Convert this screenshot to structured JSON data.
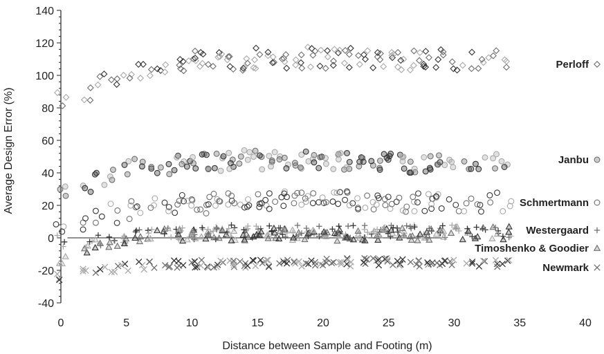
{
  "chart_data": {
    "type": "scatter",
    "xlabel": "Distance between Sample and Footing (m)",
    "ylabel": "Average Design Error (%)",
    "xlim": [
      0,
      40
    ],
    "ylim": [
      -40,
      140
    ],
    "xticks": [
      0,
      5,
      10,
      15,
      20,
      25,
      30,
      35,
      40
    ],
    "yticks": [
      -40,
      -20,
      0,
      20,
      40,
      60,
      80,
      100,
      120,
      140
    ],
    "grid": false,
    "reference_line_y": 0,
    "legend": "right, series names beside each band",
    "colors": {
      "dark": "#333333",
      "mid": "#6e6e6e",
      "light": "#a8a8a8"
    },
    "x_distances": [
      0,
      2,
      3,
      4,
      5,
      6,
      7,
      8,
      9,
      10,
      11,
      12,
      13,
      14,
      15,
      16,
      17,
      18,
      19,
      20,
      21,
      22,
      23,
      24,
      25,
      26,
      27,
      28,
      29,
      30,
      31,
      32,
      33,
      34
    ],
    "series": [
      {
        "name": "Perloff",
        "marker": "diamond-open",
        "values": [
          84,
          89,
          96,
          99,
          101,
          104,
          105,
          106,
          107,
          108,
          108,
          109,
          109,
          110,
          110,
          111,
          111,
          111,
          111,
          111,
          111,
          111,
          111,
          111,
          111,
          110,
          110,
          110,
          110,
          110,
          110,
          110,
          110,
          110
        ],
        "spread": 7
      },
      {
        "name": "Janbu",
        "marker": "circle-filled",
        "values": [
          26,
          31,
          36,
          39,
          42,
          43,
          44,
          45,
          46,
          46,
          47,
          47,
          47,
          48,
          48,
          48,
          48,
          48,
          48,
          48,
          48,
          48,
          47,
          47,
          47,
          47,
          46,
          46,
          46,
          46,
          46,
          46,
          46,
          46
        ],
        "spread": 6
      },
      {
        "name": "Schmertmann",
        "marker": "circle-open",
        "values": [
          5,
          9,
          12,
          15,
          17,
          18,
          19,
          20,
          21,
          21,
          21,
          22,
          22,
          22,
          22,
          23,
          23,
          23,
          23,
          23,
          23,
          23,
          23,
          23,
          23,
          22,
          22,
          22,
          22,
          22,
          22,
          22,
          22,
          22
        ],
        "spread": 6
      },
      {
        "name": "Westergaard",
        "marker": "plus",
        "values": [
          -2,
          -4,
          -2,
          -1,
          0,
          1,
          2,
          3,
          3,
          3,
          3,
          3,
          4,
          4,
          4,
          4,
          4,
          4,
          4,
          4,
          4,
          4,
          4,
          4,
          4,
          4,
          4,
          4,
          4,
          4,
          4,
          4,
          4,
          4
        ],
        "spread": 4
      },
      {
        "name": "Timoshenko & Goodier",
        "marker": "triangle-open",
        "values": [
          -12,
          -8,
          -5,
          -3,
          -1,
          0,
          1,
          2,
          2,
          2,
          2,
          2,
          2,
          2,
          2,
          2,
          2,
          2,
          2,
          2,
          2,
          2,
          2,
          2,
          2,
          2,
          2,
          2,
          2,
          3,
          3,
          3,
          3,
          3
        ],
        "spread": 4
      },
      {
        "name": "Newmark",
        "marker": "cross",
        "values": [
          -24,
          -21,
          -20,
          -19,
          -18,
          -17,
          -17,
          -17,
          -16,
          -16,
          -16,
          -16,
          -16,
          -16,
          -16,
          -16,
          -16,
          -16,
          -15,
          -15,
          -15,
          -15,
          -15,
          -15,
          -15,
          -15,
          -16,
          -16,
          -16,
          -16,
          -16,
          -16,
          -16,
          -16
        ],
        "spread": 2.5
      }
    ]
  }
}
